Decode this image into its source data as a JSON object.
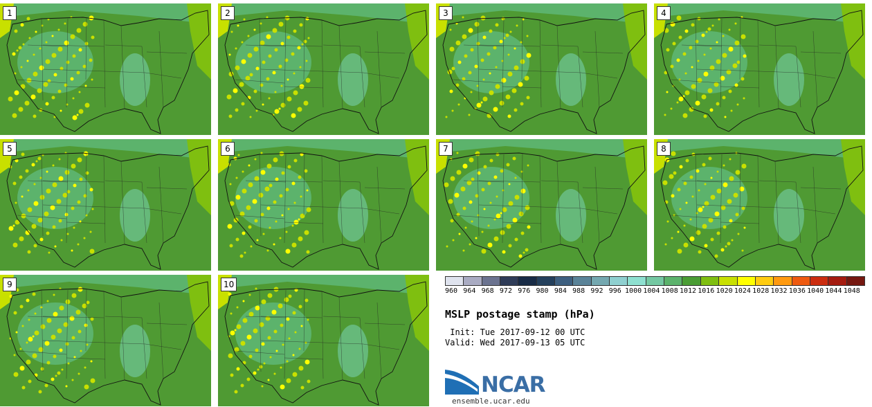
{
  "title": "MSLP postage stamp (hPa)",
  "init": " Init: Tue 2017-09-12 00 UTC",
  "valid": "Valid: Wed 2017-09-13 05 UTC",
  "url": "ensemble.ucar.edu",
  "logo_text": "NCAR",
  "members": [
    "1",
    "2",
    "3",
    "4",
    "5",
    "6",
    "7",
    "8",
    "9",
    "10"
  ],
  "legend": {
    "labels": [
      "960",
      "964",
      "968",
      "972",
      "976",
      "980",
      "984",
      "988",
      "992",
      "996",
      "1000",
      "1004",
      "1008",
      "1012",
      "1016",
      "1020",
      "1024",
      "1028",
      "1032",
      "1036",
      "1040",
      "1044",
      "1048"
    ],
    "colors": [
      "#dfe3ee",
      "#a9abc2",
      "#6b7390",
      "#2f3c58",
      "#182b46",
      "#24405c",
      "#3e6080",
      "#5a8398",
      "#74a8b0",
      "#8fd0d0",
      "#8ee0d0",
      "#74c8a2",
      "#5cb36c",
      "#4a9d34",
      "#7fbf10",
      "#c8e000",
      "#ffff00",
      "#ffcc10",
      "#ff9a10",
      "#ee5a10",
      "#cc2d10",
      "#a51c10",
      "#751810"
    ]
  }
}
